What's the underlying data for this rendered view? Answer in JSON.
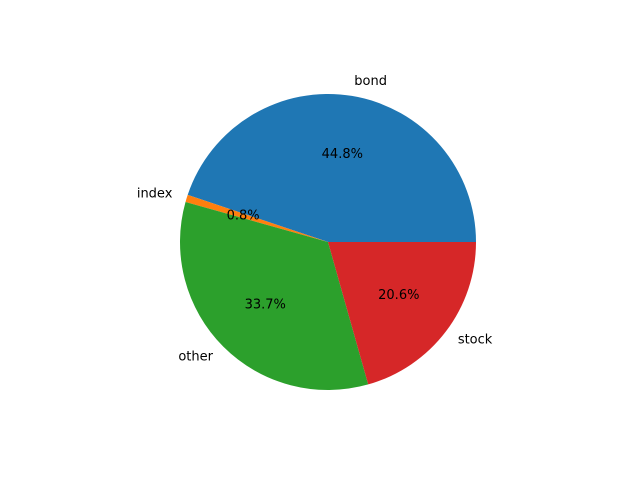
{
  "chart_data": {
    "type": "pie",
    "title": "",
    "slices": [
      {
        "label": "bond",
        "value": 44.8,
        "pct_label": "44.8%",
        "color": "#1f77b4"
      },
      {
        "label": "index",
        "value": 0.8,
        "pct_label": "0.8%",
        "color": "#ff7f0e"
      },
      {
        "label": "other",
        "value": 33.7,
        "pct_label": "33.7%",
        "color": "#2ca02c"
      },
      {
        "label": "stock",
        "value": 20.6,
        "pct_label": "20.6%",
        "color": "#d62728"
      }
    ],
    "start_angle_deg": 0,
    "direction": "counterclockwise",
    "legend": false
  }
}
